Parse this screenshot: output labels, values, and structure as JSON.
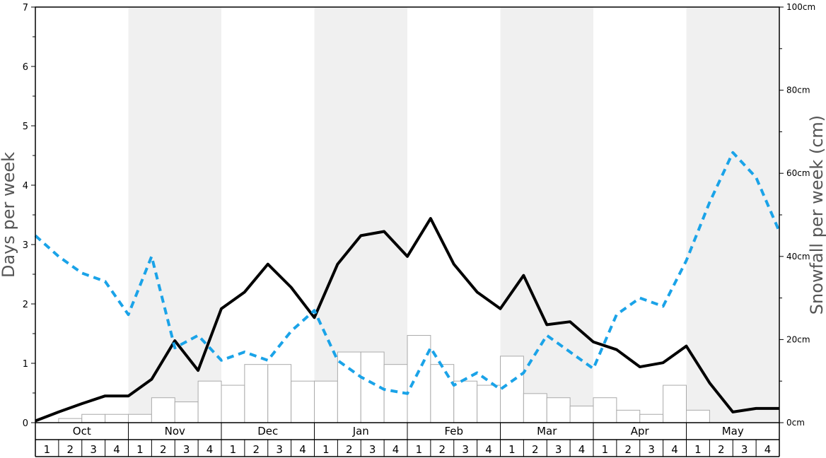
{
  "chart_data": {
    "type": "bar",
    "ylabel": "Days per week",
    "y2label": "Snowfall per week (cm)",
    "ylim": [
      0,
      7
    ],
    "y2lim": [
      0,
      100
    ],
    "y_ticks": [
      "0",
      "1",
      "2",
      "3",
      "4",
      "5",
      "6",
      "7"
    ],
    "y2_ticks": [
      "0cm",
      "20cm",
      "40cm",
      "60cm",
      "80cm",
      "100cm"
    ],
    "months": [
      "Oct",
      "Nov",
      "Dec",
      "Jan",
      "Feb",
      "Mar",
      "Apr",
      "May"
    ],
    "weeks": [
      "1",
      "2",
      "3",
      "4"
    ],
    "shaded_months": [
      false,
      true,
      false,
      true,
      false,
      true,
      false,
      true
    ],
    "colors": {
      "bars_fill": "#ffffff",
      "bars_stroke": "#aaaaaa",
      "solid_line": "#000000",
      "dashed_line": "#1aa3e8",
      "shade": "#f0f0f0",
      "axis_title": "#555555"
    },
    "series": [
      {
        "kind": "bar",
        "axis": "right",
        "values": [
          0,
          1,
          2,
          2,
          2,
          6,
          5,
          10,
          9,
          14,
          14,
          10,
          10,
          17,
          17,
          14,
          21,
          14,
          10,
          9,
          16,
          7,
          6,
          4,
          6,
          3,
          2,
          9,
          3,
          0,
          0,
          0
        ]
      },
      {
        "kind": "line",
        "style": "solid",
        "axis": "left",
        "values": [
          0.03,
          0.18,
          0.32,
          0.45,
          0.45,
          0.73,
          1.38,
          0.88,
          1.92,
          2.2,
          2.67,
          2.28,
          1.77,
          2.67,
          3.15,
          3.22,
          2.8,
          3.44,
          2.67,
          2.2,
          1.92,
          2.48,
          1.65,
          1.7,
          1.36,
          1.23,
          0.94,
          1.01,
          1.29,
          0.67,
          0.18,
          0.24,
          0.24
        ]
      },
      {
        "kind": "line",
        "style": "dashed",
        "axis": "right",
        "values": [
          45,
          40,
          36,
          34,
          26,
          40,
          18,
          21,
          15,
          17,
          15,
          22,
          27,
          15,
          11,
          8,
          7,
          18,
          9,
          12,
          8,
          12,
          21,
          17,
          13,
          26,
          30,
          28,
          39,
          53,
          65,
          59,
          46
        ]
      }
    ]
  }
}
